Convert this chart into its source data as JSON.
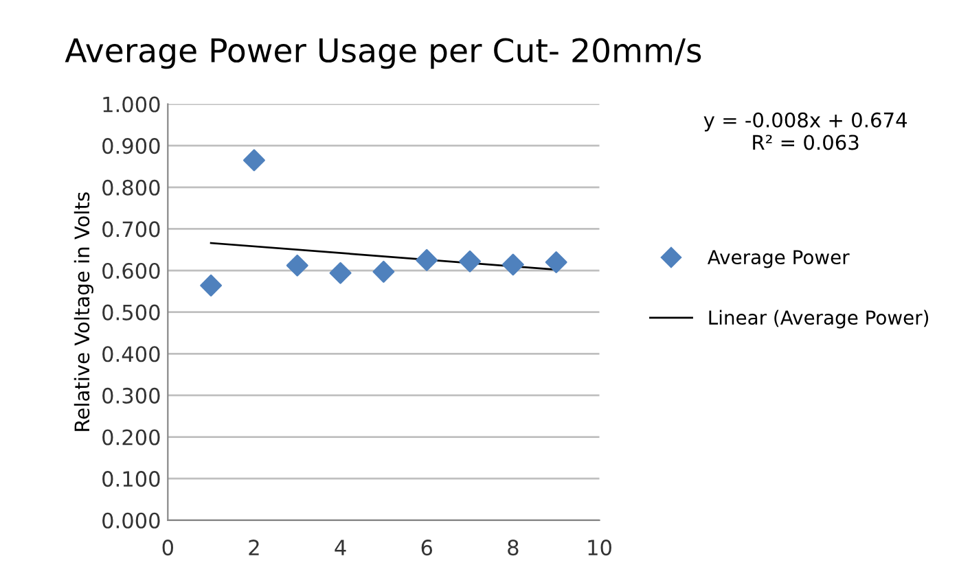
{
  "chart_data": {
    "type": "scatter",
    "title": "Average Power Usage per Cut- 20mm/s",
    "ylabel": "Relative Voltage in Volts",
    "x": [
      1,
      2,
      3,
      4,
      5,
      6,
      7,
      8,
      9
    ],
    "series": [
      {
        "name": "Average Power",
        "color": "#4f81bd",
        "marker": "diamond",
        "values": [
          0.564,
          0.865,
          0.612,
          0.594,
          0.597,
          0.625,
          0.622,
          0.614,
          0.62
        ]
      },
      {
        "name": "Linear (Average Power)",
        "type": "line",
        "color": "#000000",
        "marker": "none",
        "line_style": "solid",
        "x": [
          1,
          9
        ],
        "values": [
          0.666,
          0.602
        ]
      }
    ],
    "xlim": [
      0,
      10
    ],
    "xticks": [
      0,
      2,
      4,
      6,
      8,
      10
    ],
    "ylim": [
      0,
      1
    ],
    "yticks": [
      {
        "value": 0,
        "label": "0.000"
      },
      {
        "value": 0.1,
        "label": "0.100"
      },
      {
        "value": 0.2,
        "label": "0.200"
      },
      {
        "value": 0.3,
        "label": "0.300"
      },
      {
        "value": 0.4,
        "label": "0.400"
      },
      {
        "value": 0.5,
        "label": "0.500"
      },
      {
        "value": 0.6,
        "label": "0.600"
      },
      {
        "value": 0.7,
        "label": "0.700"
      },
      {
        "value": 0.8,
        "label": "0.800"
      },
      {
        "value": 0.9,
        "label": "0.900"
      },
      {
        "value": 1,
        "label": "1.000"
      }
    ],
    "grid": "y",
    "legend": "right",
    "annotations": [
      "y = -0.008x + 0.674\nR² = 0.063"
    ]
  }
}
